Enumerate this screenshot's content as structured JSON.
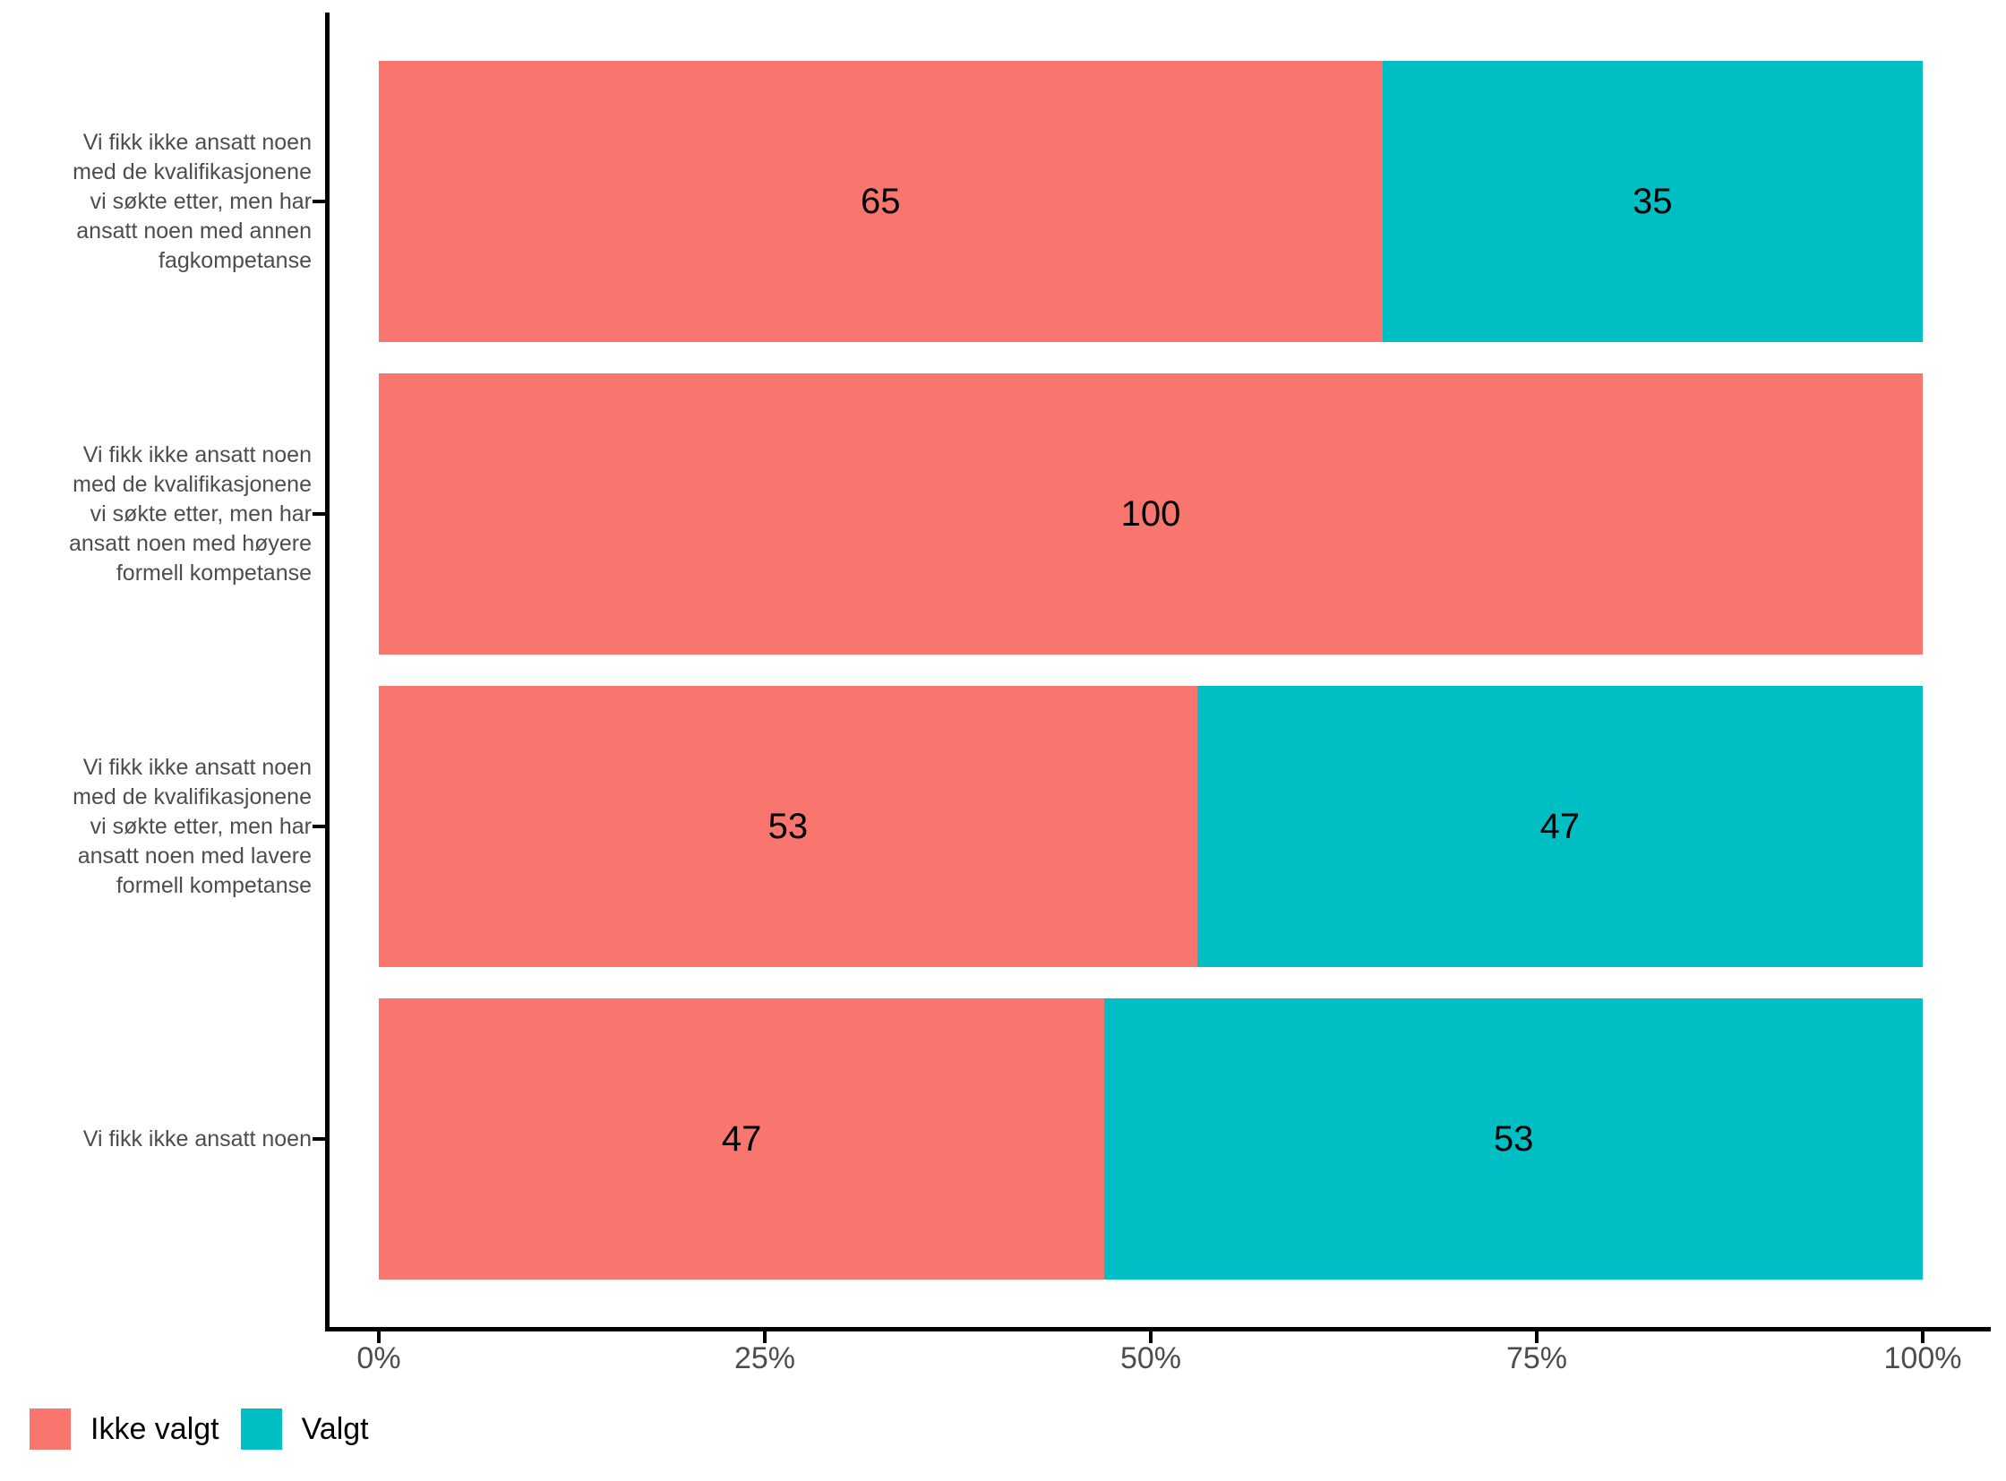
{
  "chart_data": {
    "type": "bar",
    "orientation": "horizontal",
    "stacked": true,
    "value_unit": "percent",
    "title": "",
    "xlabel": "",
    "ylabel": "",
    "grid": false,
    "x_axis": {
      "range": [
        0,
        100
      ],
      "tick_values": [
        0,
        25,
        50,
        75,
        100
      ],
      "tick_labels": [
        "0%",
        "25%",
        "50%",
        "75%",
        "100%"
      ]
    },
    "categories": [
      {
        "label": "Vi fikk ikke ansatt noen med de kvalifikasjonene vi søkte etter, men har ansatt noen med annen fagkompetanse",
        "display": "Vi fikk ikke ansatt noen\nmed de kvalifikasjonene\nvi søkte etter, men har\nansatt noen med annen\nfagkompetanse"
      },
      {
        "label": "Vi fikk ikke ansatt noen med de kvalifikasjonene vi søkte etter, men har ansatt noen med høyere formell kompetanse",
        "display": "Vi fikk ikke ansatt noen\nmed de kvalifikasjonene\nvi søkte etter, men har\nansatt noen med høyere\nformell kompetanse"
      },
      {
        "label": "Vi fikk ikke ansatt noen med de kvalifikasjonene vi søkte etter, men har ansatt noen med lavere formell kompetanse",
        "display": "Vi fikk ikke ansatt noen\nmed de kvalifikasjonene\nvi søkte etter, men har\nansatt noen med lavere\nformell kompetanse"
      },
      {
        "label": "Vi fikk ikke ansatt noen",
        "display": "Vi fikk ikke ansatt noen"
      }
    ],
    "series": [
      {
        "name": "Ikke valgt",
        "color": "#F8766D",
        "values": [
          65,
          100,
          53,
          47
        ]
      },
      {
        "name": "Valgt",
        "color": "#00BFC4",
        "values": [
          35,
          0,
          47,
          53
        ]
      }
    ],
    "legend": {
      "position": "bottom-left",
      "entries": [
        {
          "label": "Ikke valgt",
          "color": "#F8766D"
        },
        {
          "label": "Valgt",
          "color": "#00BFC4"
        }
      ]
    }
  },
  "style": {
    "background": "#FFFFFF",
    "axis_line_color": "#000000",
    "axis_text_color": "#4D4D4D",
    "value_label_color": "#000000"
  }
}
